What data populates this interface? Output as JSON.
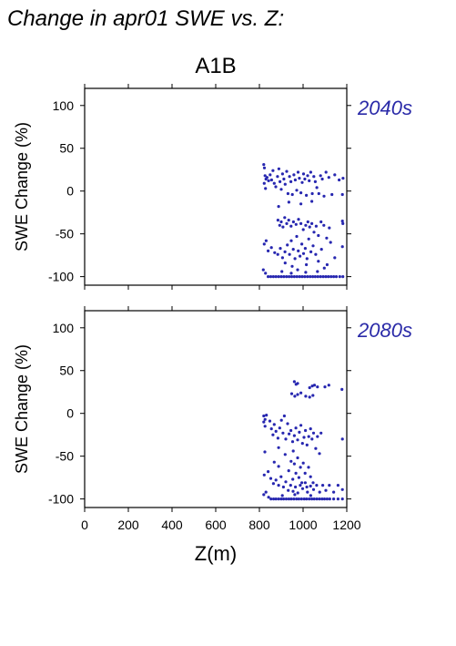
{
  "page_title": "Change in apr01 SWE vs. Z:",
  "scenario": "A1B",
  "colors": {
    "points": "#2727b0",
    "period_label": "#2a2aa8",
    "axis": "#000000"
  },
  "chart_data": [
    {
      "type": "scatter",
      "period": "2040s",
      "xlabel": "",
      "ylabel": "SWE Change (%)",
      "xlim": [
        0,
        1200
      ],
      "ylim": [
        -110,
        120
      ],
      "x_ticks": [
        0,
        200,
        400,
        600,
        800,
        1000,
        1200
      ],
      "y_ticks": [
        -100,
        -50,
        0,
        50,
        100
      ],
      "grid": false,
      "points": [
        [
          820,
          31
        ],
        [
          823,
          27
        ],
        [
          826,
          18
        ],
        [
          830,
          14
        ],
        [
          822,
          9
        ],
        [
          828,
          3
        ],
        [
          835,
          16
        ],
        [
          842,
          12
        ],
        [
          849,
          19
        ],
        [
          856,
          13
        ],
        [
          862,
          24
        ],
        [
          868,
          9
        ],
        [
          875,
          5
        ],
        [
          883,
          17
        ],
        [
          889,
          26
        ],
        [
          894,
          11
        ],
        [
          900,
          2
        ],
        [
          906,
          20
        ],
        [
          912,
          14
        ],
        [
          918,
          8
        ],
        [
          925,
          23
        ],
        [
          931,
          -3
        ],
        [
          938,
          17
        ],
        [
          944,
          11
        ],
        [
          951,
          -4
        ],
        [
          958,
          19
        ],
        [
          964,
          13
        ],
        [
          971,
          1
        ],
        [
          977,
          22
        ],
        [
          983,
          15
        ],
        [
          990,
          -2
        ],
        [
          996,
          10
        ],
        [
          1002,
          20
        ],
        [
          1008,
          14
        ],
        [
          1015,
          -5
        ],
        [
          1021,
          18
        ],
        [
          1028,
          12
        ],
        [
          1035,
          22
        ],
        [
          1042,
          -3
        ],
        [
          1049,
          17
        ],
        [
          1056,
          11
        ],
        [
          1063,
          4
        ],
        [
          1072,
          -3
        ],
        [
          1080,
          18
        ],
        [
          1088,
          14
        ],
        [
          1096,
          -6
        ],
        [
          1105,
          22
        ],
        [
          1118,
          16
        ],
        [
          1132,
          -4
        ],
        [
          1145,
          19
        ],
        [
          1165,
          13
        ],
        [
          1180,
          -4
        ],
        [
          1183,
          15
        ],
        [
          888,
          -18
        ],
        [
          935,
          -13
        ],
        [
          990,
          -15
        ],
        [
          1040,
          -12
        ],
        [
          885,
          -34
        ],
        [
          893,
          -40
        ],
        [
          900,
          -36
        ],
        [
          908,
          -42
        ],
        [
          916,
          -31
        ],
        [
          925,
          -38
        ],
        [
          934,
          -34
        ],
        [
          945,
          -41
        ],
        [
          956,
          -36
        ],
        [
          968,
          -39
        ],
        [
          979,
          -33
        ],
        [
          990,
          -38
        ],
        [
          1001,
          -45
        ],
        [
          1012,
          -40
        ],
        [
          1022,
          -36
        ],
        [
          1030,
          -42
        ],
        [
          1040,
          -38
        ],
        [
          1050,
          -48
        ],
        [
          1060,
          -41
        ],
        [
          1070,
          -52
        ],
        [
          1082,
          -36
        ],
        [
          1095,
          -40
        ],
        [
          1108,
          -55
        ],
        [
          1120,
          -43
        ],
        [
          1180,
          -35
        ],
        [
          1182,
          -38
        ],
        [
          822,
          -62
        ],
        [
          831,
          -58
        ],
        [
          840,
          -70
        ],
        [
          855,
          -66
        ],
        [
          870,
          -72
        ],
        [
          884,
          -74
        ],
        [
          896,
          -67
        ],
        [
          906,
          -78
        ],
        [
          917,
          -71
        ],
        [
          928,
          -63
        ],
        [
          938,
          -74
        ],
        [
          946,
          -58
        ],
        [
          955,
          -68
        ],
        [
          963,
          -79
        ],
        [
          971,
          -53
        ],
        [
          978,
          -70
        ],
        [
          986,
          -76
        ],
        [
          994,
          -62
        ],
        [
          1002,
          -73
        ],
        [
          1010,
          -67
        ],
        [
          1018,
          -79
        ],
        [
          1026,
          -56
        ],
        [
          1036,
          -71
        ],
        [
          1046,
          -64
        ],
        [
          1058,
          -74
        ],
        [
          1070,
          -82
        ],
        [
          1084,
          -68
        ],
        [
          1097,
          -90
        ],
        [
          1110,
          -86
        ],
        [
          1126,
          -60
        ],
        [
          1145,
          -78
        ],
        [
          1180,
          -65
        ],
        [
          918,
          -84
        ],
        [
          950,
          -88
        ],
        [
          975,
          -92
        ],
        [
          1015,
          -86
        ],
        [
          1066,
          -94
        ],
        [
          818,
          -92
        ],
        [
          828,
          -96
        ],
        [
          840,
          -100
        ],
        [
          852,
          -100
        ],
        [
          864,
          -100
        ],
        [
          876,
          -100
        ],
        [
          888,
          -100
        ],
        [
          900,
          -100
        ],
        [
          912,
          -100
        ],
        [
          924,
          -100
        ],
        [
          936,
          -100
        ],
        [
          948,
          -100
        ],
        [
          960,
          -100
        ],
        [
          972,
          -100
        ],
        [
          984,
          -100
        ],
        [
          996,
          -100
        ],
        [
          1008,
          -100
        ],
        [
          1020,
          -100
        ],
        [
          1032,
          -100
        ],
        [
          1044,
          -100
        ],
        [
          1056,
          -100
        ],
        [
          1068,
          -100
        ],
        [
          1080,
          -100
        ],
        [
          1092,
          -100
        ],
        [
          1104,
          -100
        ],
        [
          1116,
          -100
        ],
        [
          1128,
          -100
        ],
        [
          1140,
          -100
        ],
        [
          1152,
          -100
        ],
        [
          1168,
          -100
        ],
        [
          1182,
          -100
        ],
        [
          903,
          -94
        ],
        [
          946,
          -96
        ],
        [
          1012,
          -95
        ]
      ]
    },
    {
      "type": "scatter",
      "period": "2080s",
      "xlabel": "Z(m)",
      "ylabel": "SWE Change (%)",
      "xlim": [
        0,
        1200
      ],
      "ylim": [
        -110,
        120
      ],
      "x_ticks": [
        0,
        200,
        400,
        600,
        800,
        1000,
        1200
      ],
      "y_ticks": [
        -100,
        -50,
        0,
        50,
        100
      ],
      "grid": false,
      "points": [
        [
          960,
          37
        ],
        [
          968,
          34
        ],
        [
          975,
          35
        ],
        [
          1030,
          30
        ],
        [
          1042,
          32
        ],
        [
          1052,
          33
        ],
        [
          1066,
          31
        ],
        [
          1100,
          31
        ],
        [
          1118,
          33
        ],
        [
          1178,
          28
        ],
        [
          948,
          23
        ],
        [
          962,
          20
        ],
        [
          975,
          22
        ],
        [
          990,
          24
        ],
        [
          1012,
          20
        ],
        [
          1030,
          19
        ],
        [
          1045,
          21
        ],
        [
          820,
          -3
        ],
        [
          826,
          -7
        ],
        [
          832,
          -2
        ],
        [
          820,
          -10
        ],
        [
          826,
          -15
        ],
        [
          848,
          -9
        ],
        [
          855,
          -18
        ],
        [
          862,
          -25
        ],
        [
          868,
          -13
        ],
        [
          876,
          -21
        ],
        [
          885,
          -29
        ],
        [
          893,
          -17
        ],
        [
          901,
          -8
        ],
        [
          908,
          -23
        ],
        [
          914,
          -3
        ],
        [
          921,
          -30
        ],
        [
          929,
          -12
        ],
        [
          936,
          -24
        ],
        [
          944,
          -20
        ],
        [
          952,
          -33
        ],
        [
          960,
          -26
        ],
        [
          967,
          -17
        ],
        [
          975,
          -31
        ],
        [
          983,
          -22
        ],
        [
          990,
          -14
        ],
        [
          997,
          -35
        ],
        [
          1004,
          -28
        ],
        [
          1011,
          -20
        ],
        [
          1018,
          -37
        ],
        [
          1026,
          -27
        ],
        [
          1034,
          -18
        ],
        [
          1041,
          -30
        ],
        [
          1048,
          -23
        ],
        [
          1058,
          -41
        ],
        [
          1066,
          -27
        ],
        [
          1075,
          -47
        ],
        [
          1082,
          -23
        ],
        [
          1180,
          -30
        ],
        [
          825,
          -45
        ],
        [
          888,
          -40
        ],
        [
          955,
          -44
        ],
        [
          868,
          -57
        ],
        [
          888,
          -62
        ],
        [
          918,
          -48
        ],
        [
          934,
          -67
        ],
        [
          945,
          -56
        ],
        [
          953,
          -77
        ],
        [
          960,
          -59
        ],
        [
          967,
          -70
        ],
        [
          975,
          -52
        ],
        [
          981,
          -75
        ],
        [
          988,
          -63
        ],
        [
          994,
          -81
        ],
        [
          1001,
          -58
        ],
        [
          1009,
          -70
        ],
        [
          1017,
          -86
        ],
        [
          1025,
          -63
        ],
        [
          1034,
          -74
        ],
        [
          1046,
          -81
        ],
        [
          822,
          -72
        ],
        [
          840,
          -68
        ],
        [
          852,
          -76
        ],
        [
          864,
          -82
        ],
        [
          876,
          -78
        ],
        [
          888,
          -84
        ],
        [
          899,
          -74
        ],
        [
          910,
          -86
        ],
        [
          921,
          -80
        ],
        [
          932,
          -90
        ],
        [
          943,
          -84
        ],
        [
          954,
          -91
        ],
        [
          965,
          -86
        ],
        [
          976,
          -93
        ],
        [
          987,
          -84
        ],
        [
          998,
          -88
        ],
        [
          1010,
          -81
        ],
        [
          1020,
          -92
        ],
        [
          1034,
          -85
        ],
        [
          1048,
          -89
        ],
        [
          1062,
          -84
        ],
        [
          1076,
          -92
        ],
        [
          1090,
          -84
        ],
        [
          1104,
          -90
        ],
        [
          1120,
          -84
        ],
        [
          1140,
          -92
        ],
        [
          1160,
          -84
        ],
        [
          1180,
          -89
        ],
        [
          820,
          -95
        ],
        [
          830,
          -92
        ],
        [
          842,
          -98
        ],
        [
          853,
          -100
        ],
        [
          865,
          -100
        ],
        [
          876,
          -100
        ],
        [
          888,
          -100
        ],
        [
          900,
          -100
        ],
        [
          911,
          -100
        ],
        [
          923,
          -100
        ],
        [
          935,
          -100
        ],
        [
          946,
          -100
        ],
        [
          958,
          -100
        ],
        [
          970,
          -100
        ],
        [
          981,
          -100
        ],
        [
          993,
          -100
        ],
        [
          1005,
          -100
        ],
        [
          1016,
          -100
        ],
        [
          1028,
          -100
        ],
        [
          1040,
          -100
        ],
        [
          1051,
          -100
        ],
        [
          1063,
          -100
        ],
        [
          1075,
          -100
        ],
        [
          1087,
          -100
        ],
        [
          1098,
          -100
        ],
        [
          1110,
          -100
        ],
        [
          1122,
          -100
        ],
        [
          1140,
          -100
        ],
        [
          1160,
          -100
        ],
        [
          1180,
          -100
        ],
        [
          905,
          -96
        ],
        [
          962,
          -95
        ],
        [
          1035,
          -96
        ]
      ]
    }
  ]
}
